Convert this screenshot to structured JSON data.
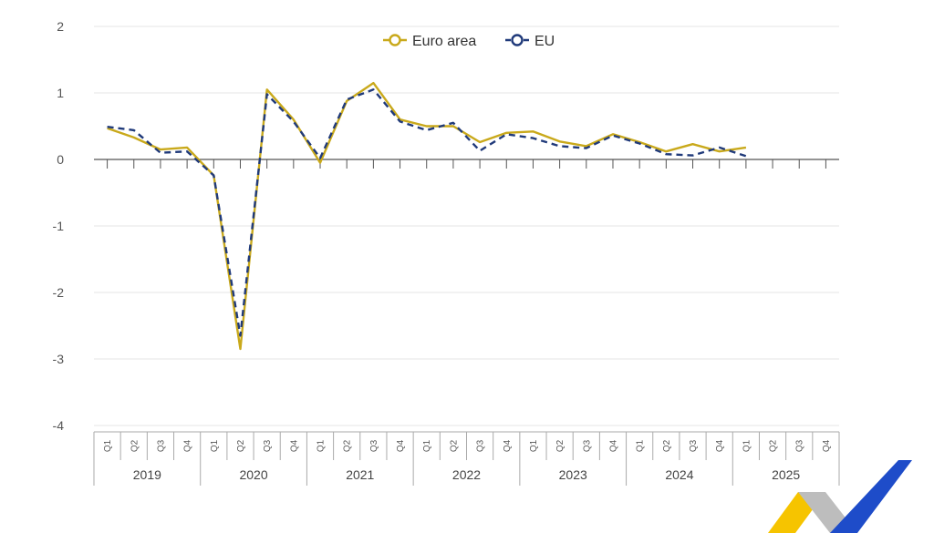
{
  "chart_data": {
    "type": "line",
    "title": "",
    "xlabel": "",
    "ylabel": "",
    "ylim": [
      -4,
      2
    ],
    "yticks": [
      2,
      1,
      0,
      -1,
      -2,
      -3,
      -4
    ],
    "grid": true,
    "legend_position": "top-center",
    "quarters": [
      "Q1",
      "Q2",
      "Q3",
      "Q4"
    ],
    "years": [
      "2019",
      "2020",
      "2021",
      "2022",
      "2023",
      "2024",
      "2025"
    ],
    "series": [
      {
        "name": "Euro area",
        "color": "#c9a91b",
        "style": "solid",
        "marker": "circle-open",
        "values": [
          0.47,
          0.33,
          0.15,
          0.18,
          -0.24,
          -2.85,
          1.05,
          0.6,
          -0.05,
          0.88,
          1.15,
          0.6,
          0.5,
          0.5,
          0.26,
          0.4,
          0.42,
          0.27,
          0.2,
          0.38,
          0.26,
          0.12,
          0.23,
          0.12,
          0.18
        ]
      },
      {
        "name": "EU",
        "color": "#203a7a",
        "style": "dashed",
        "marker": "circle-open",
        "values": [
          0.49,
          0.44,
          0.1,
          0.12,
          -0.24,
          -2.65,
          0.98,
          0.57,
          0.02,
          0.9,
          1.05,
          0.57,
          0.44,
          0.55,
          0.13,
          0.38,
          0.32,
          0.2,
          0.17,
          0.36,
          0.24,
          0.08,
          0.06,
          0.18,
          0.05
        ]
      }
    ]
  },
  "logo": {
    "name": "eurostat-logo",
    "colors": [
      "#f6c400",
      "#bdbdbd",
      "#1e4cc9"
    ]
  }
}
